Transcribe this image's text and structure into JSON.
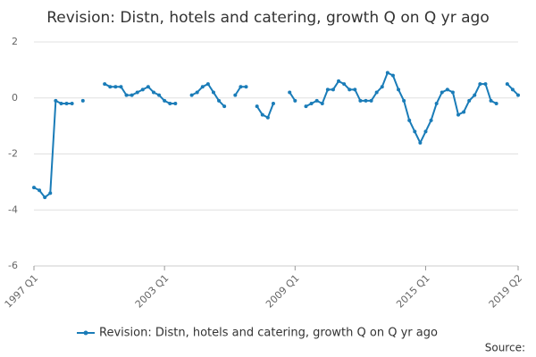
{
  "chart_data": {
    "type": "line",
    "title": "Revision: Distn, hotels and catering, growth Q on Q yr ago",
    "source": "Source:",
    "categories": [
      "1997 Q1",
      null,
      null,
      null,
      null,
      null,
      null,
      null,
      null,
      null,
      null,
      null,
      null,
      null,
      null,
      null,
      null,
      null,
      null,
      null,
      null,
      null,
      null,
      null,
      "2003 Q1",
      null,
      null,
      null,
      null,
      null,
      null,
      null,
      null,
      null,
      null,
      null,
      null,
      null,
      null,
      null,
      null,
      null,
      null,
      null,
      null,
      null,
      null,
      null,
      "2009 Q1",
      null,
      null,
      null,
      null,
      null,
      null,
      null,
      null,
      null,
      null,
      null,
      null,
      null,
      null,
      null,
      null,
      null,
      null,
      null,
      null,
      null,
      null,
      null,
      "2015 Q1",
      null,
      null,
      null,
      null,
      null,
      null,
      null,
      null,
      null,
      null,
      null,
      null,
      null,
      null,
      null,
      null,
      "2019 Q2"
    ],
    "series": [
      {
        "name": "Revision: Distn, hotels and catering, growth Q on Q yr ago",
        "color": "#1a7cb8",
        "values": [
          -3.2,
          -3.3,
          -3.55,
          -3.4,
          -0.1,
          -0.2,
          -0.2,
          -0.2,
          null,
          -0.1,
          null,
          null,
          null,
          0.5,
          0.4,
          0.4,
          0.4,
          0.1,
          0.1,
          0.2,
          0.3,
          0.4,
          0.2,
          0.1,
          -0.1,
          -0.2,
          -0.2,
          null,
          null,
          0.1,
          0.2,
          0.4,
          0.5,
          0.2,
          -0.1,
          -0.3,
          null,
          0.1,
          0.4,
          0.4,
          null,
          -0.3,
          -0.6,
          -0.7,
          -0.2,
          null,
          null,
          0.2,
          -0.1,
          null,
          -0.3,
          -0.2,
          -0.1,
          -0.2,
          0.3,
          0.3,
          0.6,
          0.5,
          0.3,
          0.3,
          -0.1,
          -0.1,
          -0.1,
          0.2,
          0.4,
          0.9,
          0.8,
          0.3,
          -0.1,
          -0.8,
          -1.2,
          -1.6,
          -1.2,
          -0.8,
          -0.2,
          0.2,
          0.3,
          0.2,
          -0.6,
          -0.5,
          -0.1,
          0.1,
          0.5,
          0.5,
          -0.1,
          -0.2,
          null,
          0.5,
          0.3,
          0.1
        ]
      }
    ],
    "ylim": [
      -6,
      2
    ],
    "yticks": [
      -6,
      -4,
      -2,
      0,
      2
    ],
    "grid": true,
    "legend": "bottom"
  }
}
